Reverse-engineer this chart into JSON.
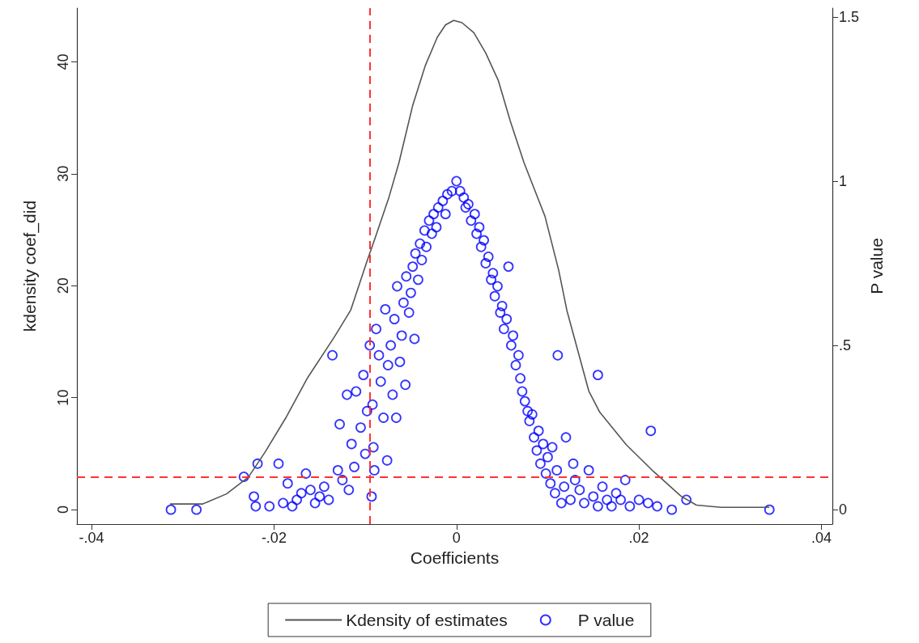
{
  "chart_data": {
    "type": "line",
    "xlabel": "Coefficients",
    "ylabel": "kdensity coef_did",
    "y2label": "P value",
    "xlim": [
      -0.0416,
      0.0412
    ],
    "xticks": [
      {
        "value": -0.04,
        "label": "-.04"
      },
      {
        "value": -0.02,
        "label": "-.02"
      },
      0,
      {
        "value": 0.02,
        "label": ".02"
      },
      {
        "value": 0.04,
        "label": ".04"
      }
    ],
    "ylim": [
      -1.3,
      44.8
    ],
    "yticks": [
      0,
      10,
      20,
      30,
      40
    ],
    "y2lim": [
      -0.044,
      1.527
    ],
    "y2ticks": [
      0,
      {
        "value": 0.5,
        "label": ".5"
      },
      1,
      1.5
    ],
    "grid": false,
    "legend": "bottom",
    "series": [
      {
        "name": "Kdensity of estimates",
        "color": "#555555",
        "marker": "none",
        "line_style": "solid",
        "x": [
          -0.0314,
          -0.0278,
          -0.0252,
          -0.0228,
          -0.021,
          -0.0187,
          -0.0163,
          -0.0134,
          -0.0116,
          -0.0098,
          -0.0089,
          -0.0074,
          -0.0063,
          -0.0048,
          -0.0034,
          -0.0021,
          -0.0012,
          -0.0003,
          0.0006,
          0.0019,
          0.0032,
          0.0046,
          0.0059,
          0.0074,
          0.0097,
          0.0112,
          0.0121,
          0.0133,
          0.0145,
          0.0157,
          0.0186,
          0.0216,
          0.0246,
          0.0263,
          0.029,
          0.0343
        ],
        "values": [
          0.5,
          0.5,
          1.4,
          2.9,
          5.1,
          8.2,
          11.8,
          15.4,
          17.8,
          22.2,
          24.3,
          27.9,
          31.0,
          36.1,
          39.7,
          42.2,
          43.3,
          43.7,
          43.5,
          42.6,
          40.8,
          38.3,
          34.7,
          31.0,
          26.2,
          21.4,
          17.8,
          14.2,
          10.6,
          8.7,
          5.8,
          3.4,
          1.2,
          0.4,
          0.2,
          0.2
        ]
      },
      {
        "name": "P value",
        "type": "scatter",
        "axis": "y2",
        "color": "#0000ff",
        "marker": "circle",
        "x": [
          -0.0313,
          -0.0285,
          -0.0233,
          -0.0218,
          -0.0222,
          -0.022,
          -0.0205,
          -0.0195,
          -0.019,
          -0.0185,
          -0.018,
          -0.0175,
          -0.017,
          -0.0165,
          -0.016,
          -0.0155,
          -0.015,
          -0.0145,
          -0.014,
          -0.0136,
          -0.013,
          -0.0128,
          -0.0125,
          -0.012,
          -0.0118,
          -0.0115,
          -0.0112,
          -0.011,
          -0.0105,
          -0.0102,
          -0.01,
          -0.0098,
          -0.0095,
          -0.0093,
          -0.0092,
          -0.0091,
          -0.009,
          -0.0088,
          -0.0085,
          -0.0083,
          -0.008,
          -0.0078,
          -0.0076,
          -0.0075,
          -0.0072,
          -0.007,
          -0.0068,
          -0.0066,
          -0.0065,
          -0.0062,
          -0.006,
          -0.0058,
          -0.0056,
          -0.0055,
          -0.0052,
          -0.005,
          -0.0048,
          -0.0046,
          -0.0045,
          -0.0042,
          -0.004,
          -0.0038,
          -0.0035,
          -0.0033,
          -0.003,
          -0.0027,
          -0.0025,
          -0.0022,
          -0.002,
          -0.0015,
          -0.0012,
          -0.001,
          -0.0005,
          0,
          0.0004,
          0.0008,
          0.001,
          0.0013,
          0.0016,
          0.002,
          0.0022,
          0.0025,
          0.0027,
          0.003,
          0.0032,
          0.0035,
          0.0038,
          0.004,
          0.0042,
          0.0045,
          0.0048,
          0.005,
          0.0052,
          0.0055,
          0.0057,
          0.006,
          0.0062,
          0.0065,
          0.0068,
          0.007,
          0.0072,
          0.0075,
          0.0078,
          0.008,
          0.0083,
          0.0085,
          0.0088,
          0.009,
          0.0092,
          0.0095,
          0.0098,
          0.01,
          0.0103,
          0.0105,
          0.0108,
          0.011,
          0.0111,
          0.0115,
          0.0118,
          0.012,
          0.0125,
          0.0128,
          0.013,
          0.0135,
          0.014,
          0.0145,
          0.015,
          0.0155,
          0.0155,
          0.016,
          0.0165,
          0.017,
          0.0175,
          0.018,
          0.0185,
          0.019,
          0.0213,
          0.02,
          0.021,
          0.022,
          0.0236,
          0.0252,
          0.0343
        ],
        "values": [
          0,
          0,
          0.1,
          0.14,
          0.04,
          0.01,
          0.01,
          0.14,
          0.02,
          0.08,
          0.01,
          0.03,
          0.05,
          0.11,
          0.06,
          0.02,
          0.04,
          0.07,
          0.03,
          0.47,
          0.12,
          0.26,
          0.09,
          0.35,
          0.06,
          0.2,
          0.13,
          0.36,
          0.25,
          0.41,
          0.17,
          0.3,
          0.5,
          0.04,
          0.32,
          0.19,
          0.12,
          0.55,
          0.47,
          0.39,
          0.28,
          0.61,
          0.15,
          0.44,
          0.5,
          0.35,
          0.58,
          0.28,
          0.68,
          0.45,
          0.53,
          0.63,
          0.38,
          0.71,
          0.6,
          0.66,
          0.74,
          0.52,
          0.78,
          0.7,
          0.81,
          0.76,
          0.85,
          0.8,
          0.88,
          0.84,
          0.9,
          0.86,
          0.92,
          0.94,
          0.9,
          0.96,
          0.97,
          1.0,
          0.97,
          0.95,
          0.92,
          0.93,
          0.88,
          0.9,
          0.84,
          0.86,
          0.8,
          0.82,
          0.75,
          0.77,
          0.7,
          0.72,
          0.65,
          0.68,
          0.6,
          0.62,
          0.55,
          0.58,
          0.74,
          0.5,
          0.53,
          0.44,
          0.47,
          0.4,
          0.36,
          0.33,
          0.3,
          0.27,
          0.29,
          0.22,
          0.18,
          0.24,
          0.14,
          0.2,
          0.11,
          0.16,
          0.08,
          0.19,
          0.05,
          0.12,
          0.47,
          0.02,
          0.07,
          0.22,
          0.03,
          0.14,
          0.09,
          0.06,
          0.02,
          0.12,
          0.04,
          0.01,
          0.41,
          0.07,
          0.03,
          0.01,
          0.05,
          0.03,
          0.09,
          0.01,
          0.24,
          0.03,
          0.02,
          0.01,
          0,
          0.03,
          0
        ]
      }
    ],
    "ref_lines": [
      {
        "axis": "x",
        "value": -0.0095,
        "color": "#ff3333",
        "line_style": "dashed"
      },
      {
        "axis": "y2",
        "value": 0.1,
        "color": "#ff3333",
        "line_style": "dashed"
      }
    ]
  }
}
